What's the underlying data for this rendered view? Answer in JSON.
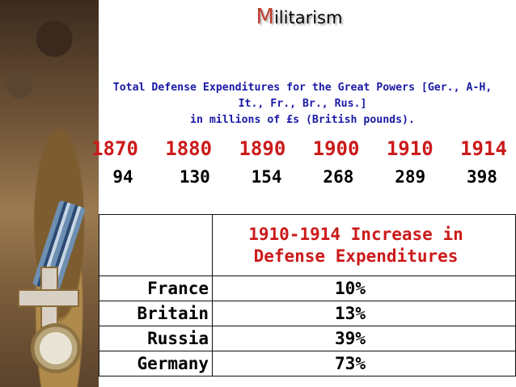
{
  "slide": {
    "title_first_letter": "M",
    "title_rest": "ilitarism",
    "subtitle_line1": "Total Defense Expenditures for the Great Powers [Ger., A-H,",
    "subtitle_line2": "It., Fr., Br., Rus.]",
    "subtitle_line3": "in millions of £s (British pounds).",
    "colors": {
      "years": "#cc1a1a",
      "subtitle": "#1a1aa6",
      "title_accent": "#c0392b"
    }
  },
  "expenditures": {
    "years": [
      "1870",
      "1880",
      "1890",
      "1900",
      "1910",
      "1914"
    ],
    "values": [
      "94",
      "130",
      "154",
      "268",
      "289",
      "398"
    ]
  },
  "increase_table": {
    "header_line1": "1910-1914 Increase in",
    "header_line2": "Defense Expenditures",
    "rows": [
      {
        "country": "France",
        "percent": "10%"
      },
      {
        "country": "Britain",
        "percent": "13%"
      },
      {
        "country": "Russia",
        "percent": "39%"
      },
      {
        "country": "Germany",
        "percent": "73%"
      }
    ]
  },
  "decorations": [
    "photo-collage",
    "medal-ribbon",
    "medal-cross-icon",
    "compass-icon"
  ]
}
